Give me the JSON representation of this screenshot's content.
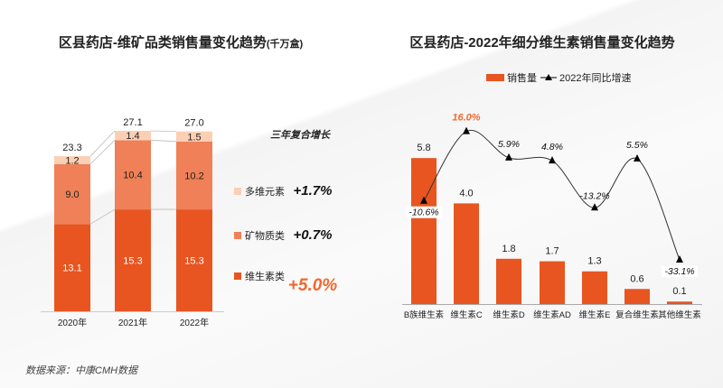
{
  "source": "数据来源：中康CMH数据",
  "colors": {
    "vitamin": "#e85520",
    "mineral": "#ef8057",
    "multi": "#fbcfb4",
    "line": "#000000",
    "highlight": "#f06a2e"
  },
  "chart_data": [
    {
      "type": "bar",
      "stacked": true,
      "title": "区县药店-维矿品类销售量变化趋势",
      "title_unit": "(千万盒)",
      "categories": [
        "2020年",
        "2021年",
        "2022年"
      ],
      "series": [
        {
          "name": "维生素类",
          "values": [
            13.1,
            15.3,
            15.3
          ],
          "cagr": "+5.0%"
        },
        {
          "name": "矿物质类",
          "values": [
            9.0,
            10.4,
            10.2
          ],
          "cagr": "+0.7%"
        },
        {
          "name": "多维元素",
          "values": [
            1.2,
            1.4,
            1.5
          ],
          "cagr": "+1.7%"
        }
      ],
      "totals": [
        "23.3",
        "27.1",
        "27.0"
      ],
      "cagr_title": "三年复合增长",
      "legend": "right"
    },
    {
      "type": "bar",
      "title": "区县药店-2022年细分维生素销售量变化趋势",
      "categories": [
        "B族维生素",
        "维生素C",
        "维生素D",
        "维生素AD",
        "维生素E",
        "复合维生素",
        "其他维生素"
      ],
      "series": [
        {
          "name": "销售量",
          "type": "bar",
          "values": [
            5.8,
            4.0,
            1.8,
            1.7,
            1.3,
            0.6,
            0.1
          ]
        },
        {
          "name": "2022年同比增速",
          "type": "line",
          "values": [
            -10.6,
            16.0,
            5.9,
            4.8,
            -13.2,
            5.5,
            -33.1
          ],
          "unit": "%"
        }
      ],
      "legend": "top"
    }
  ]
}
